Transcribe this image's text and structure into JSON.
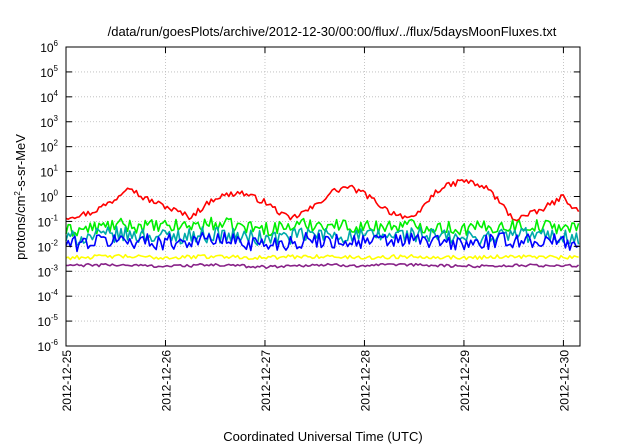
{
  "chart_data": {
    "type": "line",
    "title": "/data/run/goesPlots/archive/2012-12-30/00:00/flux/../flux/5daysMoonFluxes.txt",
    "xlabel": "Coordinated Universal Time (UTC)",
    "ylabel": "protons/cm²-s-sr-MeV",
    "ylabel_parts": [
      "protons/cm",
      "2",
      "-s-sr-MeV"
    ],
    "y_scale": "log",
    "ylim_exponents": [
      -6,
      6
    ],
    "y_tick_base": "10",
    "y_tick_exponents": [
      "-6",
      "-5",
      "-4",
      "-3",
      "-2",
      "-1",
      "0",
      "1",
      "2",
      "3",
      "4",
      "5",
      "6"
    ],
    "x_range_days": [
      "2012-12-25",
      "2012-12-30T04:00"
    ],
    "x_tick_labels": [
      "2012-12-25",
      "2012-12-26",
      "2012-12-27",
      "2012-12-28",
      "2012-12-29",
      "2012-12-30"
    ],
    "grid": true,
    "series": [
      {
        "color": "#ff0000",
        "x": [
          "2012-12-25T00:00",
          "2012-12-25T06:00",
          "2012-12-25T12:00",
          "2012-12-25T15:00",
          "2012-12-25T18:00",
          "2012-12-26T00:00",
          "2012-12-26T06:00",
          "2012-12-26T12:00",
          "2012-12-26T18:00",
          "2012-12-27T00:00",
          "2012-12-27T06:00",
          "2012-12-27T12:00",
          "2012-12-27T16:00",
          "2012-12-27T20:00",
          "2012-12-28T00:00",
          "2012-12-28T06:00",
          "2012-12-28T12:00",
          "2012-12-28T15:00",
          "2012-12-28T18:00",
          "2012-12-29T00:00",
          "2012-12-29T06:00",
          "2012-12-29T12:00",
          "2012-12-29T18:00",
          "2012-12-30T00:00",
          "2012-12-30T04:00"
        ],
        "y": [
          0.15,
          0.22,
          0.8,
          3.0,
          1.0,
          0.4,
          0.15,
          0.9,
          1.5,
          0.6,
          0.12,
          0.4,
          1.5,
          2.5,
          1.3,
          0.25,
          0.12,
          0.6,
          2.0,
          4.5,
          2.0,
          0.12,
          0.25,
          1.0,
          0.2
        ]
      },
      {
        "color": "#00ee00",
        "x": [
          "2012-12-25T00:00",
          "2012-12-25T12:00",
          "2012-12-26T00:00",
          "2012-12-26T12:00",
          "2012-12-27T00:00",
          "2012-12-27T12:00",
          "2012-12-28T00:00",
          "2012-12-28T12:00",
          "2012-12-29T00:00",
          "2012-12-29T12:00",
          "2012-12-30T00:00",
          "2012-12-30T04:00"
        ],
        "y": [
          0.04,
          0.07,
          0.06,
          0.08,
          0.05,
          0.08,
          0.06,
          0.07,
          0.05,
          0.07,
          0.06,
          0.05
        ]
      },
      {
        "color": "#00aaaa",
        "x": [
          "2012-12-25T00:00",
          "2012-12-25T12:00",
          "2012-12-26T00:00",
          "2012-12-26T12:00",
          "2012-12-27T00:00",
          "2012-12-27T12:00",
          "2012-12-28T00:00",
          "2012-12-28T12:00",
          "2012-12-29T00:00",
          "2012-12-29T12:00",
          "2012-12-30T00:00",
          "2012-12-30T04:00"
        ],
        "y": [
          0.02,
          0.03,
          0.025,
          0.03,
          0.02,
          0.03,
          0.025,
          0.03,
          0.02,
          0.03,
          0.025,
          0.02
        ]
      },
      {
        "color": "#0000ff",
        "x": [
          "2012-12-25T00:00",
          "2012-12-25T12:00",
          "2012-12-26T00:00",
          "2012-12-26T12:00",
          "2012-12-27T00:00",
          "2012-12-27T12:00",
          "2012-12-28T00:00",
          "2012-12-28T12:00",
          "2012-12-29T00:00",
          "2012-12-29T12:00",
          "2012-12-30T00:00",
          "2012-12-30T04:00"
        ],
        "y": [
          0.012,
          0.018,
          0.015,
          0.02,
          0.012,
          0.018,
          0.015,
          0.018,
          0.012,
          0.018,
          0.015,
          0.012
        ]
      },
      {
        "color": "#ffff00",
        "x": [
          "2012-12-25T00:00",
          "2012-12-25T12:00",
          "2012-12-26T00:00",
          "2012-12-26T12:00",
          "2012-12-27T00:00",
          "2012-12-27T12:00",
          "2012-12-28T00:00",
          "2012-12-28T12:00",
          "2012-12-29T00:00",
          "2012-12-29T12:00",
          "2012-12-30T00:00",
          "2012-12-30T04:00"
        ],
        "y": [
          0.0035,
          0.004,
          0.0035,
          0.004,
          0.0035,
          0.004,
          0.0035,
          0.004,
          0.0035,
          0.004,
          0.0035,
          0.0035
        ]
      },
      {
        "color": "#882288",
        "x": [
          "2012-12-25T00:00",
          "2012-12-25T12:00",
          "2012-12-26T00:00",
          "2012-12-26T12:00",
          "2012-12-27T00:00",
          "2012-12-27T12:00",
          "2012-12-28T00:00",
          "2012-12-28T12:00",
          "2012-12-29T00:00",
          "2012-12-29T12:00",
          "2012-12-30T00:00",
          "2012-12-30T04:00"
        ],
        "y": [
          0.0017,
          0.0018,
          0.0016,
          0.0018,
          0.0015,
          0.0018,
          0.0017,
          0.0018,
          0.0016,
          0.0017,
          0.0017,
          0.0016
        ]
      }
    ]
  }
}
